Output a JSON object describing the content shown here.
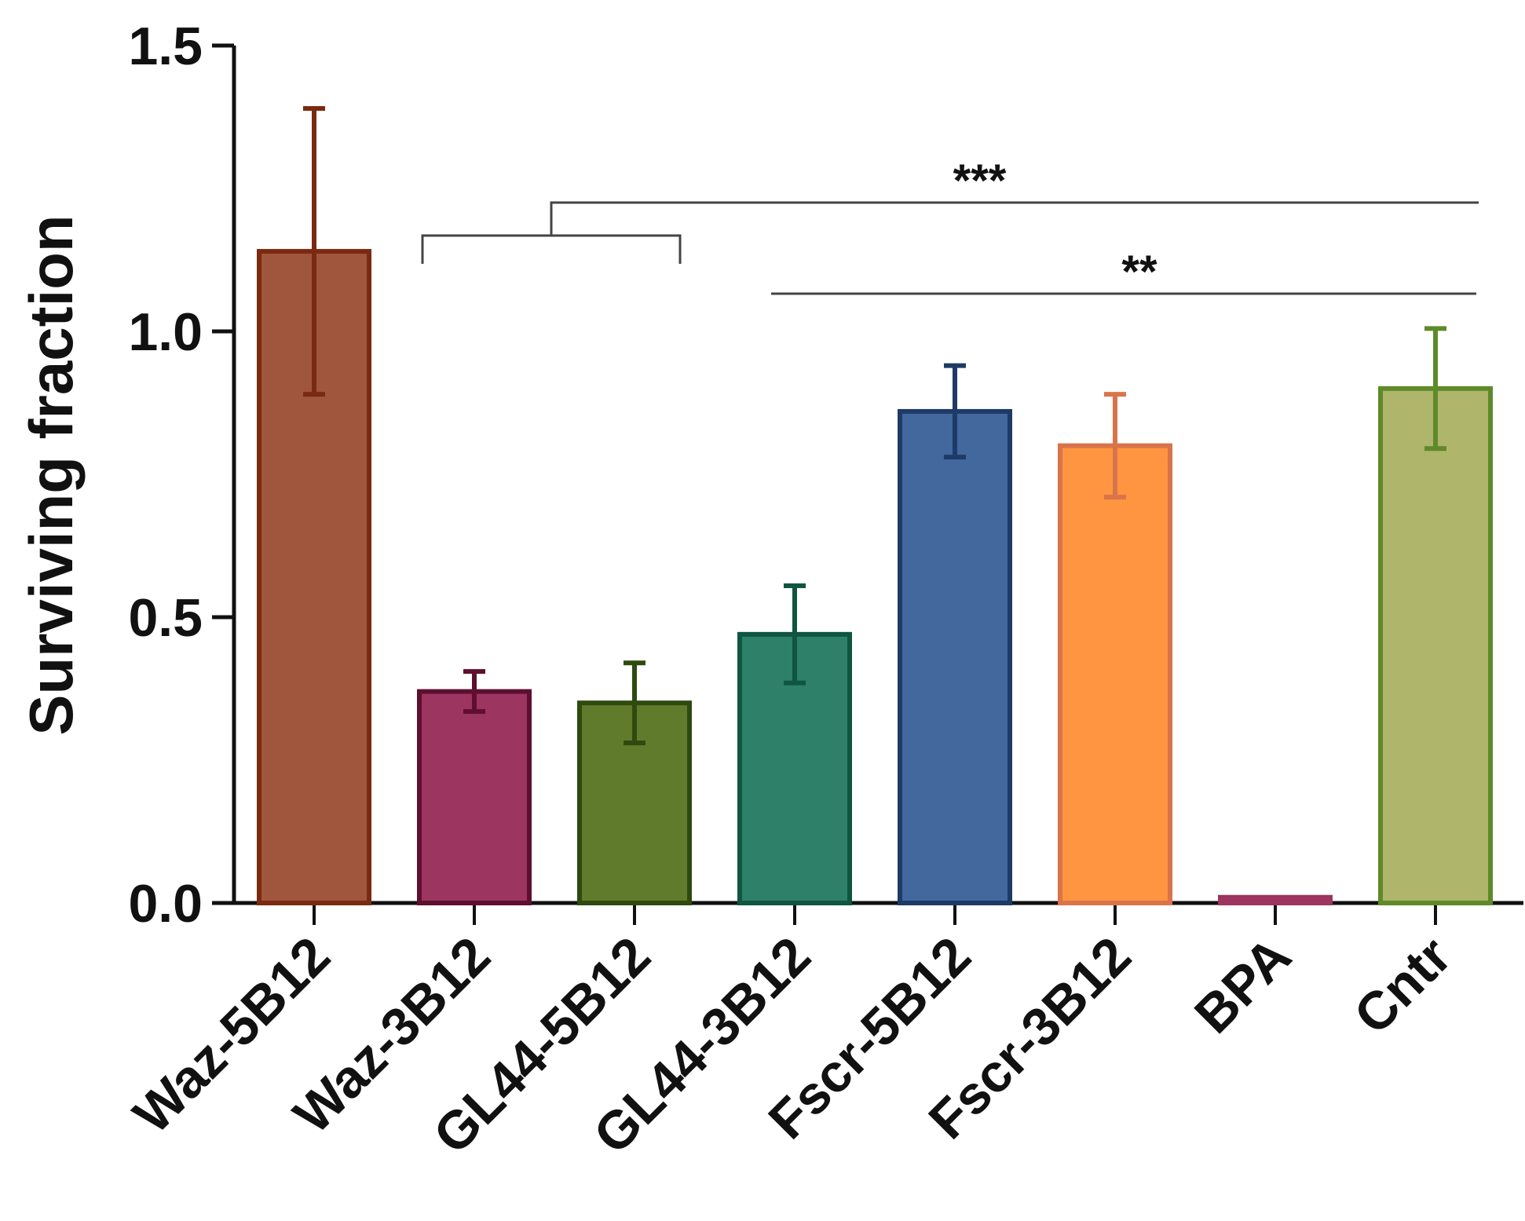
{
  "chart_data": {
    "type": "bar",
    "title": "",
    "xlabel": "",
    "ylabel": "Surviving fraction",
    "ylim": [
      0,
      1.5
    ],
    "yticks": [
      0.0,
      0.5,
      1.0,
      1.5
    ],
    "ytick_labels": [
      "0.0",
      "0.5",
      "1.0",
      "1.5"
    ],
    "categories": [
      "Waz-5B12",
      "Waz-3B12",
      "GL44-5B12",
      "GL44-3B12",
      "Fscr-5B12",
      "Fscr-3B12",
      "BPA",
      "Cntr"
    ],
    "values": [
      1.14,
      0.37,
      0.35,
      0.47,
      0.86,
      0.8,
      0.01,
      0.9
    ],
    "errors": [
      0.25,
      0.035,
      0.07,
      0.085,
      0.08,
      0.09,
      0.0,
      0.105
    ],
    "fill_colors": [
      "#a0563c",
      "#9c3560",
      "#617b2c",
      "#2e8068",
      "#42689e",
      "#ff9541",
      "#9c3560",
      "#afb56a"
    ],
    "edge_colors": [
      "#7a2a10",
      "#5e0f30",
      "#2e4a0f",
      "#0f5540",
      "#1e3a66",
      "#d9744a",
      "#9c3560",
      "#5e8a2a"
    ],
    "significance": [
      {
        "label": "***",
        "bracket_from": 1,
        "bracket_to": 2,
        "to_category": 7
      },
      {
        "label": "**",
        "from_category": 3,
        "to_category": 7
      }
    ]
  }
}
